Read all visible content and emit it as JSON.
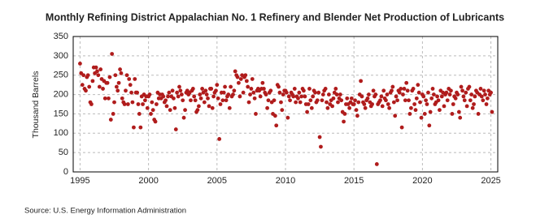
{
  "chart_data": {
    "type": "scatter",
    "title": "Monthly Refining District Appalachian No. 1 Refinery and Blender Net Production of Lubricants",
    "ylabel": "Thousand Barrels",
    "source": "Source: U.S. Energy Information Administration",
    "color": "#b01c1c",
    "grid": true,
    "xlim": [
      1994.5,
      2025.5
    ],
    "xticks": [
      1995,
      2000,
      2005,
      2010,
      2015,
      2020,
      2025
    ],
    "ylim": [
      0,
      350
    ],
    "yticks": [
      0,
      50,
      100,
      150,
      200,
      250,
      300,
      350
    ],
    "x": [
      1995,
      1995.08,
      1995.17,
      1995.25,
      1995.33,
      1995.42,
      1995.5,
      1995.58,
      1995.67,
      1995.75,
      1995.83,
      1995.92,
      1996,
      1996.08,
      1996.17,
      1996.25,
      1996.33,
      1996.42,
      1996.5,
      1996.58,
      1996.67,
      1996.75,
      1996.83,
      1996.92,
      1997,
      1997.08,
      1997.17,
      1997.25,
      1997.33,
      1997.42,
      1997.5,
      1997.58,
      1997.67,
      1997.75,
      1997.83,
      1997.92,
      1998,
      1998.08,
      1998.17,
      1998.25,
      1998.33,
      1998.42,
      1998.5,
      1998.58,
      1998.67,
      1998.75,
      1998.83,
      1998.92,
      1999,
      1999.08,
      1999.17,
      1999.25,
      1999.33,
      1999.42,
      1999.5,
      1999.58,
      1999.67,
      1999.75,
      1999.83,
      1999.92,
      2000,
      2000.08,
      2000.17,
      2000.25,
      2000.33,
      2000.42,
      2000.5,
      2000.58,
      2000.67,
      2000.75,
      2000.83,
      2000.92,
      2001,
      2001.08,
      2001.17,
      2001.25,
      2001.33,
      2001.42,
      2001.5,
      2001.58,
      2001.67,
      2001.75,
      2001.83,
      2001.92,
      2002,
      2002.08,
      2002.17,
      2002.25,
      2002.33,
      2002.42,
      2002.5,
      2002.58,
      2002.67,
      2002.75,
      2002.83,
      2002.92,
      2003,
      2003.08,
      2003.17,
      2003.25,
      2003.33,
      2003.42,
      2003.5,
      2003.58,
      2003.67,
      2003.75,
      2003.83,
      2003.92,
      2004,
      2004.08,
      2004.17,
      2004.25,
      2004.33,
      2004.42,
      2004.5,
      2004.58,
      2004.67,
      2004.75,
      2004.83,
      2004.92,
      2005,
      2005.08,
      2005.17,
      2005.25,
      2005.33,
      2005.42,
      2005.5,
      2005.58,
      2005.67,
      2005.75,
      2005.83,
      2005.92,
      2006,
      2006.08,
      2006.17,
      2006.25,
      2006.33,
      2006.42,
      2006.5,
      2006.58,
      2006.67,
      2006.75,
      2006.83,
      2006.92,
      2007,
      2007.08,
      2007.17,
      2007.25,
      2007.33,
      2007.42,
      2007.5,
      2007.58,
      2007.67,
      2007.75,
      2007.83,
      2007.92,
      2008,
      2008.08,
      2008.17,
      2008.25,
      2008.33,
      2008.42,
      2008.5,
      2008.58,
      2008.67,
      2008.75,
      2008.83,
      2008.92,
      2009,
      2009.08,
      2009.17,
      2009.25,
      2009.33,
      2009.42,
      2009.5,
      2009.58,
      2009.67,
      2009.75,
      2009.83,
      2009.92,
      2010,
      2010.08,
      2010.17,
      2010.25,
      2010.33,
      2010.42,
      2010.5,
      2010.58,
      2010.67,
      2010.75,
      2010.83,
      2010.92,
      2011,
      2011.08,
      2011.17,
      2011.25,
      2011.33,
      2011.42,
      2011.5,
      2011.58,
      2011.67,
      2011.75,
      2011.83,
      2011.92,
      2012,
      2012.08,
      2012.17,
      2012.25,
      2012.33,
      2012.42,
      2012.5,
      2012.58,
      2012.67,
      2012.75,
      2012.83,
      2012.92,
      2013,
      2013.08,
      2013.17,
      2013.25,
      2013.33,
      2013.42,
      2013.5,
      2013.58,
      2013.67,
      2013.75,
      2013.83,
      2013.92,
      2014,
      2014.08,
      2014.17,
      2014.25,
      2014.33,
      2014.42,
      2014.5,
      2014.58,
      2014.67,
      2014.75,
      2014.83,
      2014.92,
      2015,
      2015.08,
      2015.17,
      2015.25,
      2015.33,
      2015.42,
      2015.5,
      2015.58,
      2015.67,
      2015.75,
      2015.83,
      2015.92,
      2016,
      2016.08,
      2016.17,
      2016.25,
      2016.33,
      2016.42,
      2016.5,
      2016.58,
      2016.67,
      2016.75,
      2016.83,
      2016.92,
      2017,
      2017.08,
      2017.17,
      2017.25,
      2017.33,
      2017.42,
      2017.5,
      2017.58,
      2017.67,
      2017.75,
      2017.83,
      2017.92,
      2018,
      2018.08,
      2018.17,
      2018.25,
      2018.33,
      2018.42,
      2018.5,
      2018.58,
      2018.67,
      2018.75,
      2018.83,
      2018.92,
      2019,
      2019.08,
      2019.17,
      2019.25,
      2019.33,
      2019.42,
      2019.5,
      2019.58,
      2019.67,
      2019.75,
      2019.83,
      2019.92,
      2020,
      2020.08,
      2020.17,
      2020.25,
      2020.33,
      2020.42,
      2020.5,
      2020.58,
      2020.67,
      2020.75,
      2020.83,
      2020.92,
      2021,
      2021.08,
      2021.17,
      2021.25,
      2021.33,
      2021.42,
      2021.5,
      2021.58,
      2021.67,
      2021.75,
      2021.83,
      2021.92,
      2022,
      2022.08,
      2022.17,
      2022.25,
      2022.33,
      2022.42,
      2022.5,
      2022.58,
      2022.67,
      2022.75,
      2022.83,
      2022.92,
      2023,
      2023.08,
      2023.17,
      2023.25,
      2023.33,
      2023.42,
      2023.5,
      2023.58,
      2023.67,
      2023.75,
      2023.83,
      2023.92,
      2024,
      2024.08,
      2024.17,
      2024.25,
      2024.33,
      2024.42,
      2024.5,
      2024.58,
      2024.67,
      2024.75,
      2024.83,
      2024.92,
      2025,
      2025.08
    ],
    "values": [
      280,
      255,
      225,
      250,
      215,
      210,
      245,
      250,
      220,
      180,
      175,
      235,
      270,
      255,
      270,
      260,
      250,
      220,
      265,
      240,
      215,
      235,
      190,
      230,
      230,
      190,
      245,
      135,
      305,
      150,
      180,
      250,
      220,
      210,
      230,
      265,
      255,
      190,
      180,
      175,
      210,
      250,
      175,
      240,
      225,
      205,
      180,
      115,
      240,
      205,
      205,
      175,
      150,
      115,
      195,
      175,
      200,
      185,
      195,
      165,
      195,
      200,
      150,
      180,
      160,
      135,
      130,
      175,
      205,
      190,
      200,
      190,
      200,
      195,
      180,
      185,
      170,
      195,
      205,
      160,
      195,
      210,
      190,
      165,
      110,
      205,
      195,
      220,
      210,
      200,
      185,
      140,
      160,
      205,
      210,
      200,
      205,
      185,
      210,
      215,
      195,
      185,
      155,
      160,
      170,
      200,
      190,
      215,
      205,
      180,
      210,
      200,
      190,
      170,
      215,
      215,
      165,
      195,
      205,
      210,
      225,
      190,
      85,
      175,
      205,
      185,
      205,
      220,
      185,
      195,
      200,
      165,
      220,
      195,
      200,
      210,
      260,
      250,
      245,
      230,
      195,
      240,
      250,
      205,
      245,
      250,
      235,
      220,
      180,
      200,
      215,
      240,
      205,
      190,
      150,
      210,
      215,
      210,
      195,
      215,
      230,
      215,
      205,
      200,
      165,
      185,
      205,
      210,
      180,
      150,
      185,
      145,
      120,
      225,
      220,
      205,
      180,
      160,
      200,
      210,
      210,
      205,
      140,
      195,
      185,
      205,
      200,
      195,
      215,
      180,
      195,
      190,
      205,
      180,
      195,
      215,
      210,
      195,
      175,
      155,
      175,
      215,
      185,
      165,
      195,
      210,
      205,
      180,
      185,
      205,
      90,
      65,
      185,
      200,
      210,
      215,
      180,
      165,
      200,
      175,
      185,
      170,
      190,
      205,
      215,
      200,
      180,
      190,
      200,
      185,
      155,
      130,
      150,
      175,
      190,
      175,
      165,
      180,
      190,
      175,
      175,
      185,
      160,
      145,
      180,
      200,
      235,
      195,
      180,
      175,
      165,
      185,
      190,
      200,
      180,
      170,
      175,
      210,
      195,
      200,
      20,
      175,
      180,
      185,
      195,
      170,
      210,
      190,
      185,
      200,
      175,
      165,
      205,
      210,
      220,
      180,
      145,
      195,
      185,
      210,
      205,
      215,
      115,
      200,
      215,
      185,
      230,
      210,
      185,
      150,
      165,
      210,
      215,
      175,
      160,
      190,
      225,
      205,
      180,
      140,
      200,
      195,
      150,
      185,
      175,
      205,
      120,
      155,
      190,
      215,
      200,
      175,
      180,
      195,
      185,
      160,
      210,
      195,
      205,
      170,
      200,
      205,
      185,
      215,
      200,
      210,
      150,
      175,
      195,
      190,
      205,
      200,
      155,
      140,
      220,
      210,
      195,
      185,
      205,
      170,
      215,
      220,
      185,
      200,
      165,
      175,
      195,
      210,
      205,
      150,
      200,
      215,
      195,
      185,
      210,
      200,
      175,
      190,
      210,
      200,
      205,
      155
    ]
  }
}
